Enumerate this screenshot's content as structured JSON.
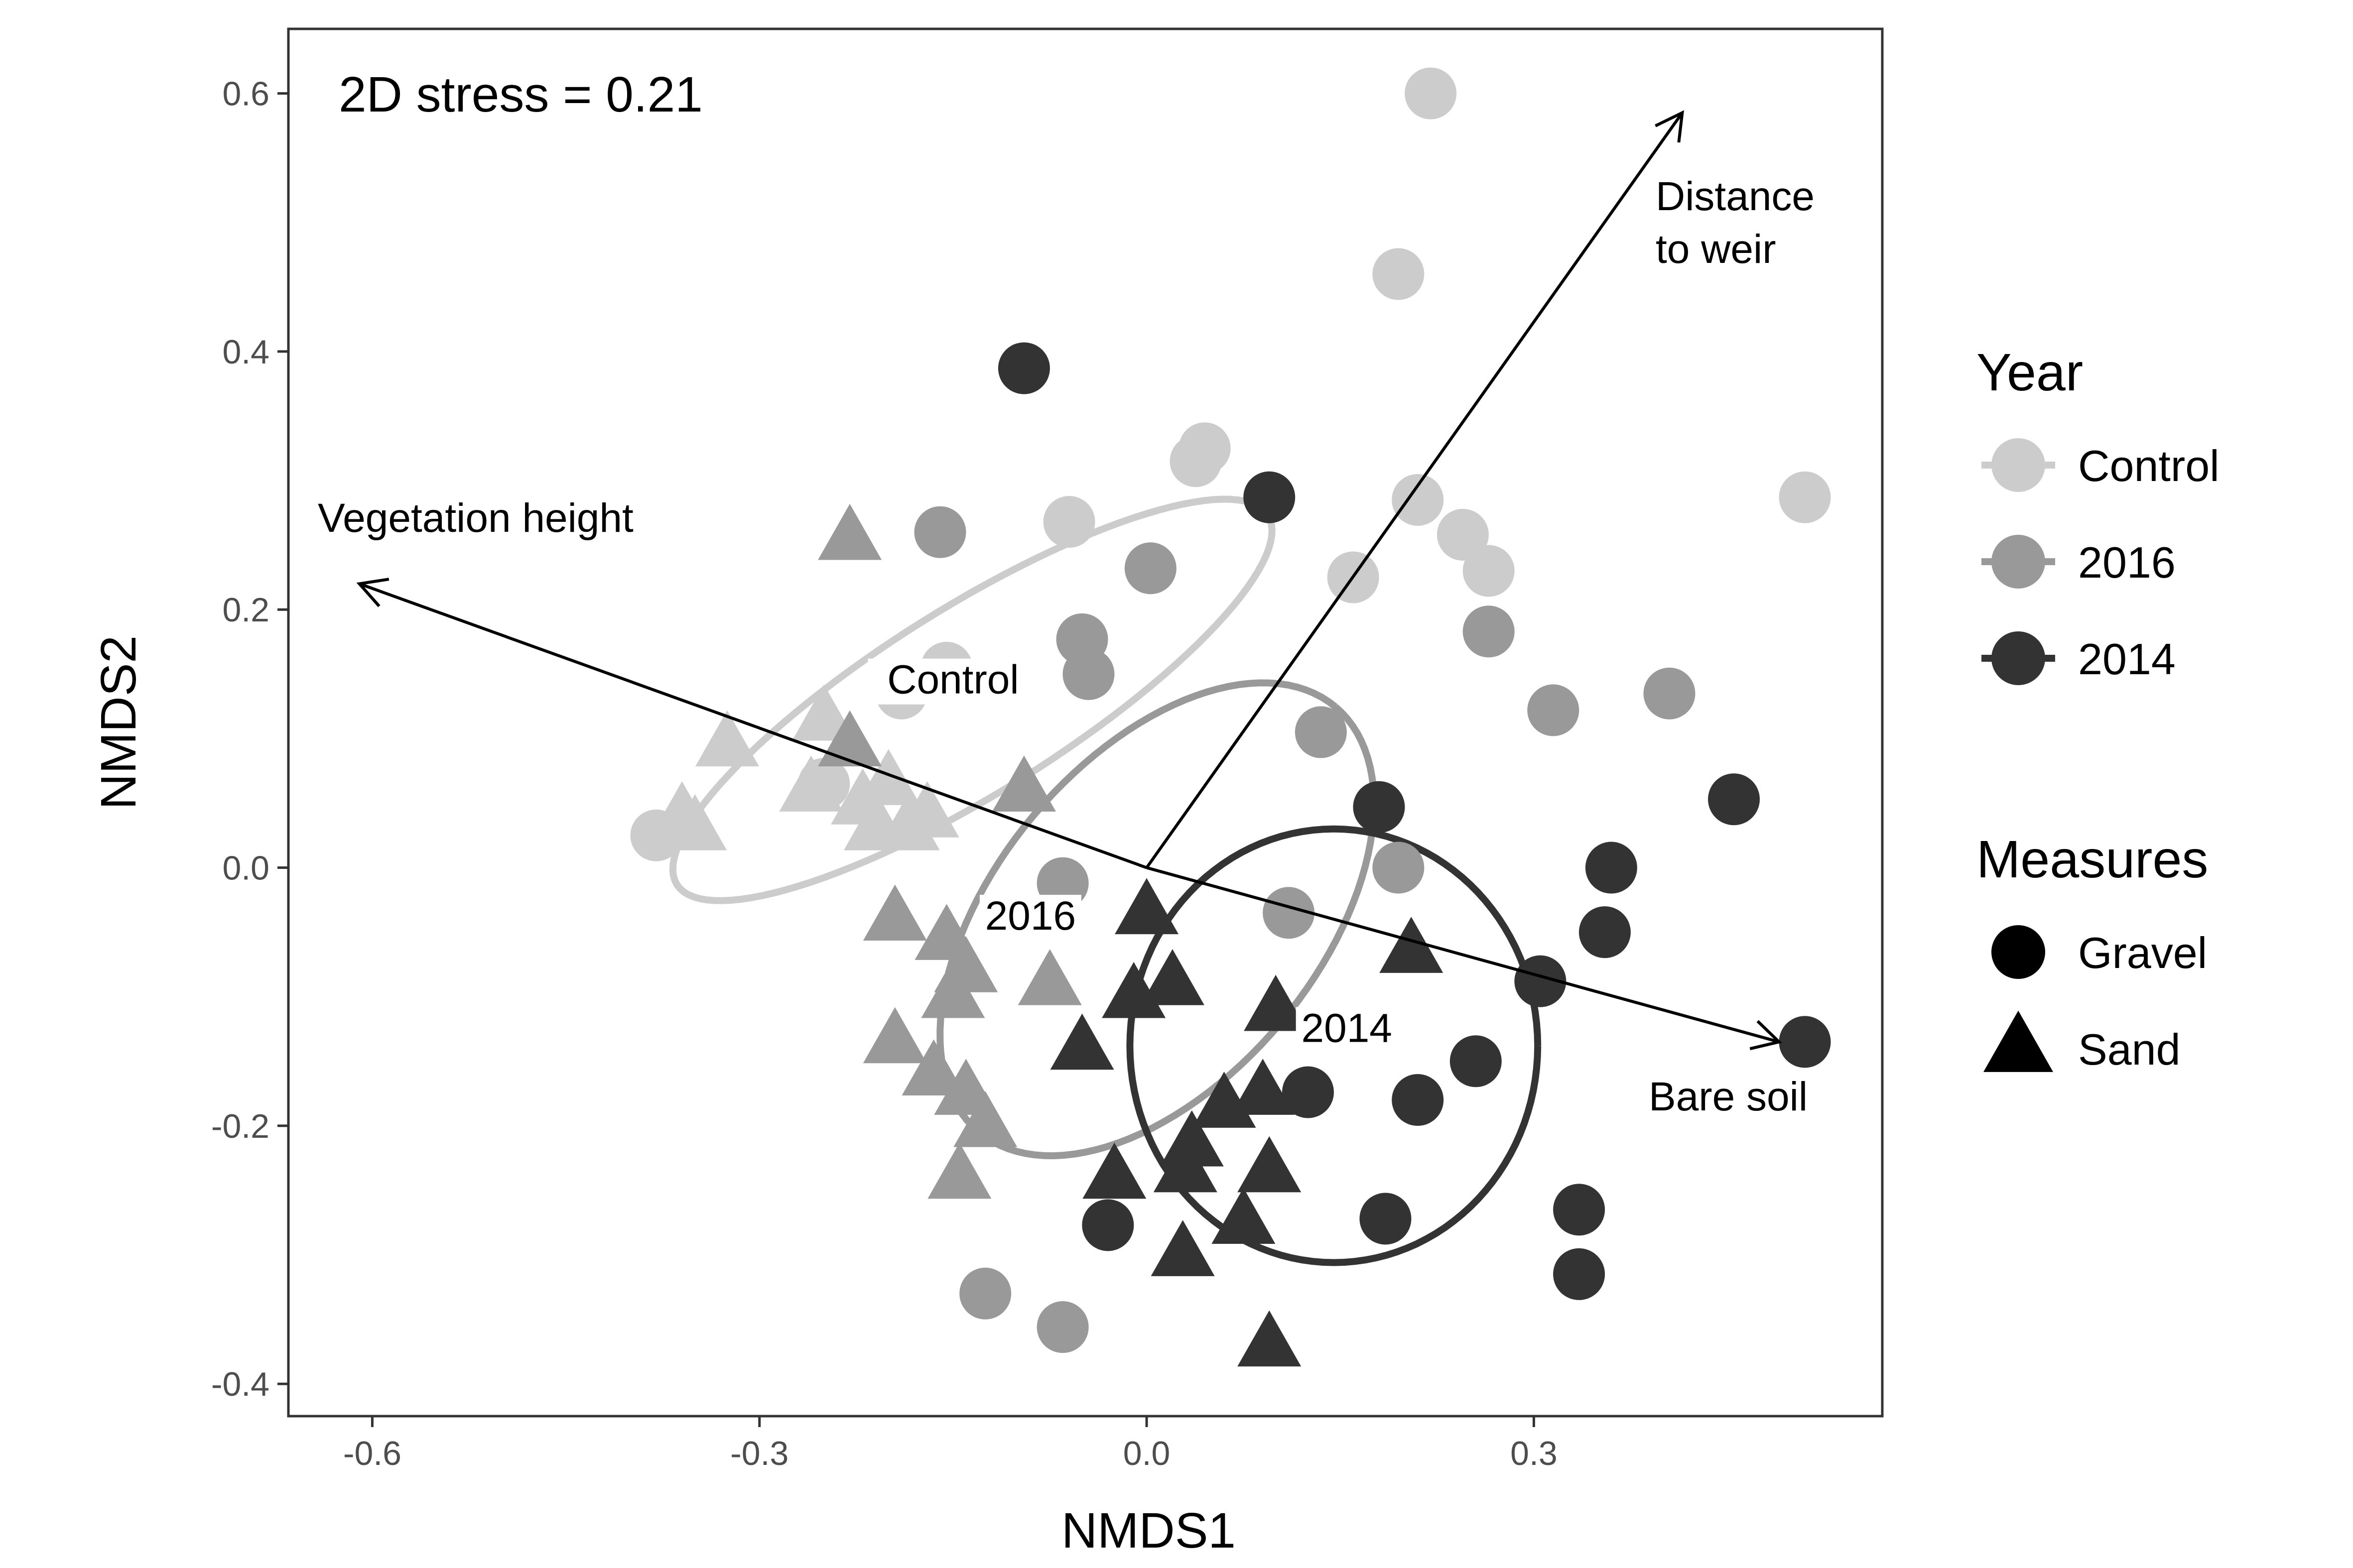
{
  "chart_data": {
    "type": "scatter",
    "annotation": "2D stress = 0.21",
    "xlabel": "NMDS1",
    "ylabel": "NMDS2",
    "xlim": [
      -0.665,
      0.57
    ],
    "ylim": [
      -0.425,
      0.65
    ],
    "x_ticks": [
      {
        "value": -0.6,
        "label": "-0.6"
      },
      {
        "value": -0.3,
        "label": "-0.3"
      },
      {
        "value": 0.0,
        "label": "0.0"
      },
      {
        "value": 0.3,
        "label": "0.3"
      }
    ],
    "y_ticks": [
      {
        "value": 0.6,
        "label": "0.6"
      },
      {
        "value": 0.4,
        "label": "0.4"
      },
      {
        "value": 0.2,
        "label": "0.2"
      },
      {
        "value": 0.0,
        "label": "0.0"
      },
      {
        "value": -0.2,
        "label": "-0.2"
      },
      {
        "value": -0.4,
        "label": "-0.4"
      }
    ],
    "grid": false,
    "legend_placement": "right",
    "legend": {
      "year_title": "Year",
      "years": [
        {
          "key": "control",
          "label": "Control",
          "color": "#cccccc"
        },
        {
          "key": "y2016",
          "label": "2016",
          "color": "#999999"
        },
        {
          "key": "y2014",
          "label": "2014",
          "color": "#333333"
        }
      ],
      "measures_title": "Measures",
      "measures": [
        {
          "key": "gravel",
          "label": "Gravel",
          "shape": "circle"
        },
        {
          "key": "sand",
          "label": "Sand",
          "shape": "triangle"
        }
      ]
    },
    "vectors": [
      {
        "label": "Distance to weir",
        "label_lines": [
          "Distance",
          "to weir"
        ],
        "x": 0.415,
        "y": 0.585
      },
      {
        "label": "Vegetation height",
        "label_lines": [
          "Vegetation height"
        ],
        "x": -0.61,
        "y": 0.22
      },
      {
        "label": "Bare soil",
        "label_lines": [
          "Bare soil"
        ],
        "x": 0.49,
        "y": -0.135
      }
    ],
    "ellipses": [
      {
        "group": "control",
        "label": "Control",
        "label_x": -0.15,
        "label_y": 0.135,
        "cx": -0.135,
        "cy": 0.13,
        "rx": 0.27,
        "ry": 0.072,
        "angle": 32,
        "color": "#cccccc"
      },
      {
        "group": "y2016",
        "label": "2016",
        "label_x": -0.09,
        "label_y": -0.048,
        "cx": 0.008,
        "cy": -0.04,
        "rx": 0.215,
        "ry": 0.125,
        "angle": 50,
        "color": "#999999"
      },
      {
        "group": "y2014",
        "label": "2014",
        "label_x": 0.155,
        "label_y": -0.135,
        "cx": 0.145,
        "cy": -0.138,
        "rx": 0.158,
        "ry": 0.168,
        "angle": 0,
        "color": "#333333"
      }
    ],
    "series": [
      {
        "group": "control",
        "measure": "gravel",
        "points": [
          [
            0.22,
            0.6
          ],
          [
            0.195,
            0.46
          ],
          [
            0.038,
            0.315
          ],
          [
            0.045,
            0.325
          ],
          [
            -0.06,
            0.268
          ],
          [
            0.21,
            0.285
          ],
          [
            0.245,
            0.258
          ],
          [
            0.265,
            0.23
          ],
          [
            0.16,
            0.225
          ],
          [
            0.51,
            0.287
          ],
          [
            -0.155,
            0.155
          ],
          [
            -0.19,
            0.135
          ],
          [
            -0.25,
            0.065
          ],
          [
            -0.38,
            0.025
          ]
        ]
      },
      {
        "group": "control",
        "measure": "sand",
        "points": [
          [
            -0.36,
            0.04
          ],
          [
            -0.35,
            0.03
          ],
          [
            -0.325,
            0.095
          ],
          [
            -0.25,
            0.115
          ],
          [
            -0.26,
            0.06
          ],
          [
            -0.22,
            0.05
          ],
          [
            -0.2,
            0.065
          ],
          [
            -0.17,
            0.04
          ],
          [
            -0.185,
            0.03
          ],
          [
            -0.21,
            0.03
          ]
        ]
      },
      {
        "group": "y2016",
        "measure": "gravel",
        "points": [
          [
            -0.16,
            0.26
          ],
          [
            0.003,
            0.232
          ],
          [
            -0.05,
            0.177
          ],
          [
            -0.045,
            0.15
          ],
          [
            0.135,
            0.105
          ],
          [
            0.265,
            0.183
          ],
          [
            0.315,
            0.122
          ],
          [
            0.405,
            0.135
          ],
          [
            0.195,
            0.0
          ],
          [
            -0.065,
            -0.012
          ],
          [
            0.11,
            -0.035
          ],
          [
            -0.125,
            -0.33
          ],
          [
            -0.065,
            -0.356
          ]
        ]
      },
      {
        "group": "y2016",
        "measure": "sand",
        "points": [
          [
            -0.23,
            0.255
          ],
          [
            -0.095,
            0.06
          ],
          [
            -0.195,
            -0.04
          ],
          [
            -0.155,
            -0.055
          ],
          [
            -0.14,
            -0.08
          ],
          [
            -0.075,
            -0.09
          ],
          [
            -0.15,
            -0.1
          ],
          [
            -0.195,
            -0.135
          ],
          [
            -0.165,
            -0.16
          ],
          [
            -0.14,
            -0.175
          ],
          [
            -0.125,
            -0.2
          ],
          [
            -0.145,
            -0.24
          ],
          [
            -0.23,
            0.095
          ]
        ]
      },
      {
        "group": "y2014",
        "measure": "gravel",
        "points": [
          [
            -0.095,
            0.387
          ],
          [
            0.095,
            0.287
          ],
          [
            0.18,
            0.047
          ],
          [
            0.455,
            0.053
          ],
          [
            0.36,
            0.0
          ],
          [
            0.355,
            -0.05
          ],
          [
            0.305,
            -0.088
          ],
          [
            0.51,
            -0.135
          ],
          [
            0.255,
            -0.15
          ],
          [
            0.21,
            -0.18
          ],
          [
            0.125,
            -0.174
          ],
          [
            0.185,
            -0.272
          ],
          [
            -0.03,
            -0.277
          ],
          [
            0.335,
            -0.265
          ],
          [
            0.335,
            -0.315
          ]
        ]
      },
      {
        "group": "y2014",
        "measure": "sand",
        "points": [
          [
            0.0,
            -0.035
          ],
          [
            0.02,
            -0.09
          ],
          [
            -0.01,
            -0.1
          ],
          [
            0.1,
            -0.11
          ],
          [
            -0.05,
            -0.14
          ],
          [
            0.06,
            -0.185
          ],
          [
            0.09,
            -0.175
          ],
          [
            0.035,
            -0.215
          ],
          [
            0.03,
            -0.235
          ],
          [
            -0.025,
            -0.24
          ],
          [
            0.095,
            -0.235
          ],
          [
            0.075,
            -0.275
          ],
          [
            0.028,
            -0.3
          ],
          [
            0.095,
            -0.37
          ],
          [
            0.205,
            -0.065
          ]
        ]
      }
    ]
  }
}
